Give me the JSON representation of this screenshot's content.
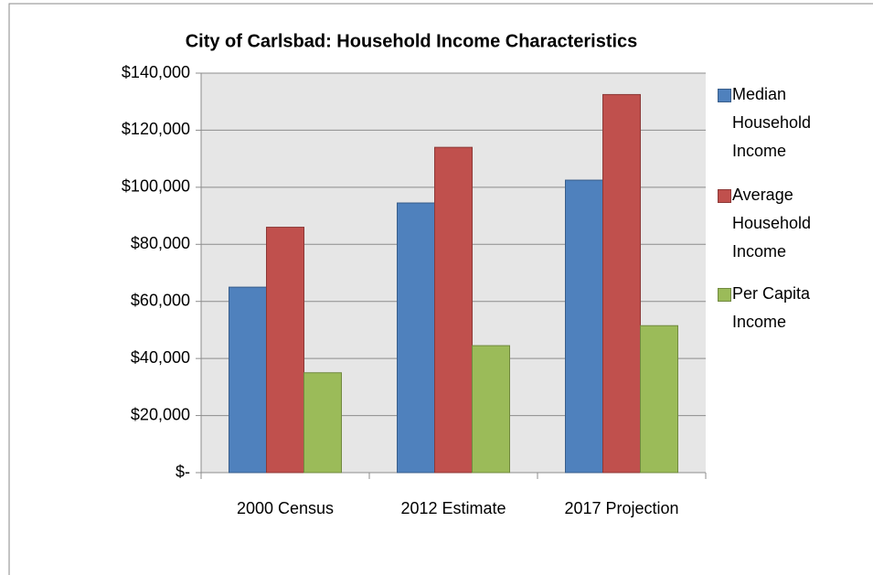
{
  "chart_data": {
    "type": "bar",
    "title": "City of Carlsbad: Household Income Characteristics",
    "categories": [
      "2000 Census",
      "2012 Estimate",
      "2017 Projection"
    ],
    "series": [
      {
        "name": "Median Household Income",
        "color": "#4f81bd",
        "values": [
          65000,
          94500,
          102500
        ]
      },
      {
        "name": "Average Household Income",
        "color": "#c0504d",
        "values": [
          86000,
          114000,
          132500
        ]
      },
      {
        "name": "Per Capita Income",
        "color": "#9bbb59",
        "values": [
          35000,
          44500,
          51500
        ]
      }
    ],
    "ylim": [
      0,
      140000
    ],
    "yticks": [
      {
        "value": 0,
        "label": "$-"
      },
      {
        "value": 20000,
        "label": "$20,000"
      },
      {
        "value": 40000,
        "label": "$40,000"
      },
      {
        "value": 60000,
        "label": "$60,000"
      },
      {
        "value": 80000,
        "label": "$80,000"
      },
      {
        "value": 100000,
        "label": "$100,000"
      },
      {
        "value": 120000,
        "label": "$120,000"
      },
      {
        "value": 140000,
        "label": "$140,000"
      }
    ],
    "grid": true,
    "legend": "right"
  }
}
